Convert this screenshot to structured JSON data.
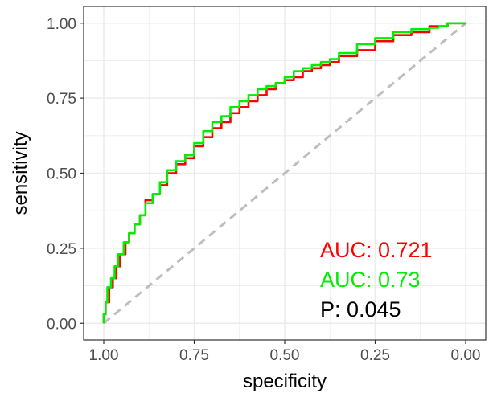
{
  "chart_data": {
    "type": "line",
    "xlabel": "specificity",
    "ylabel": "sensitivity",
    "xlim": [
      1.0,
      0.0
    ],
    "ylim": [
      0.0,
      1.0
    ],
    "x_reversed": true,
    "grid": true,
    "x_ticks": [
      {
        "value": 1.0,
        "label": "1.00"
      },
      {
        "value": 0.75,
        "label": "0.75"
      },
      {
        "value": 0.5,
        "label": "0.50"
      },
      {
        "value": 0.25,
        "label": "0.25"
      },
      {
        "value": 0.0,
        "label": "0.00"
      }
    ],
    "y_ticks": [
      {
        "value": 0.0,
        "label": "0.00"
      },
      {
        "value": 0.25,
        "label": "0.25"
      },
      {
        "value": 0.5,
        "label": "0.50"
      },
      {
        "value": 0.75,
        "label": "0.75"
      },
      {
        "value": 1.0,
        "label": "1.00"
      }
    ],
    "reference_line": {
      "points": [
        [
          1.0,
          0.0
        ],
        [
          0.0,
          1.0
        ]
      ],
      "color": "#bebebe",
      "style": "dashed"
    },
    "series": [
      {
        "color": "#ff0000",
        "points": [
          [
            1.0,
            0.0
          ],
          [
            0.995,
            0.03
          ],
          [
            0.985,
            0.07
          ],
          [
            0.975,
            0.12
          ],
          [
            0.965,
            0.15
          ],
          [
            0.955,
            0.19
          ],
          [
            0.94,
            0.23
          ],
          [
            0.93,
            0.27
          ],
          [
            0.915,
            0.3
          ],
          [
            0.9,
            0.33
          ],
          [
            0.885,
            0.36
          ],
          [
            0.865,
            0.41
          ],
          [
            0.845,
            0.43
          ],
          [
            0.825,
            0.46
          ],
          [
            0.8,
            0.5
          ],
          [
            0.775,
            0.53
          ],
          [
            0.75,
            0.55
          ],
          [
            0.725,
            0.59
          ],
          [
            0.7,
            0.62
          ],
          [
            0.675,
            0.65
          ],
          [
            0.65,
            0.67
          ],
          [
            0.625,
            0.7
          ],
          [
            0.6,
            0.72
          ],
          [
            0.575,
            0.74
          ],
          [
            0.55,
            0.76
          ],
          [
            0.525,
            0.78
          ],
          [
            0.5,
            0.8
          ],
          [
            0.475,
            0.81
          ],
          [
            0.45,
            0.82
          ],
          [
            0.425,
            0.84
          ],
          [
            0.4,
            0.85
          ],
          [
            0.375,
            0.86
          ],
          [
            0.35,
            0.87
          ],
          [
            0.3,
            0.89
          ],
          [
            0.25,
            0.91
          ],
          [
            0.2,
            0.94
          ],
          [
            0.15,
            0.96
          ],
          [
            0.1,
            0.97
          ],
          [
            0.075,
            0.99
          ],
          [
            0.05,
            0.99
          ],
          [
            0.0,
            1.0
          ]
        ]
      },
      {
        "color": "#00ee00",
        "points": [
          [
            1.0,
            0.0
          ],
          [
            0.995,
            0.03
          ],
          [
            0.99,
            0.07
          ],
          [
            0.98,
            0.12
          ],
          [
            0.97,
            0.15
          ],
          [
            0.96,
            0.19
          ],
          [
            0.945,
            0.23
          ],
          [
            0.93,
            0.27
          ],
          [
            0.915,
            0.3
          ],
          [
            0.9,
            0.33
          ],
          [
            0.885,
            0.36
          ],
          [
            0.865,
            0.4
          ],
          [
            0.845,
            0.43
          ],
          [
            0.825,
            0.47
          ],
          [
            0.8,
            0.51
          ],
          [
            0.775,
            0.54
          ],
          [
            0.75,
            0.56
          ],
          [
            0.725,
            0.6
          ],
          [
            0.7,
            0.64
          ],
          [
            0.675,
            0.67
          ],
          [
            0.65,
            0.69
          ],
          [
            0.625,
            0.72
          ],
          [
            0.6,
            0.74
          ],
          [
            0.575,
            0.76
          ],
          [
            0.55,
            0.78
          ],
          [
            0.525,
            0.79
          ],
          [
            0.5,
            0.8
          ],
          [
            0.475,
            0.82
          ],
          [
            0.45,
            0.84
          ],
          [
            0.425,
            0.85
          ],
          [
            0.4,
            0.86
          ],
          [
            0.375,
            0.87
          ],
          [
            0.35,
            0.88
          ],
          [
            0.3,
            0.9
          ],
          [
            0.25,
            0.93
          ],
          [
            0.2,
            0.95
          ],
          [
            0.15,
            0.97
          ],
          [
            0.1,
            0.98
          ],
          [
            0.075,
            0.985
          ],
          [
            0.05,
            0.99
          ],
          [
            0.0,
            1.0
          ]
        ]
      }
    ],
    "annotations": [
      {
        "text": "AUC: 0.721",
        "color": "#ff0000"
      },
      {
        "text": "AUC: 0.73",
        "color": "#00ee00"
      },
      {
        "text": "P: 0.045",
        "color": "#000000"
      }
    ]
  }
}
